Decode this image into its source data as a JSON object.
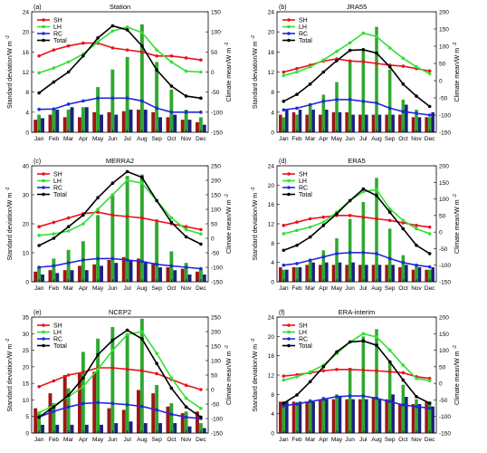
{
  "months": [
    "Jan",
    "Feb",
    "Mar",
    "Apr",
    "May",
    "Jun",
    "Jul",
    "Aug",
    "Sep",
    "Oct",
    "Nov",
    "Dec"
  ],
  "left_axis_label": "Standard deviation/W m",
  "right_axis_label": "Climate mean/W m",
  "colors": {
    "SH": "#e8141b",
    "LH": "#33e033",
    "RC": "#1f2bd6",
    "Total": "#000000",
    "bar_SH": "#a01515",
    "bar_LH": "#2fa82f",
    "bar_RC": "#1a237e"
  },
  "chart_data": [
    {
      "panel": "(a)",
      "title": "Station",
      "type": "bar+line",
      "left_axis": {
        "label": "Standard deviation/W m-2",
        "range": [
          0,
          24
        ],
        "ticks": [
          0,
          4,
          8,
          12,
          16,
          20,
          24
        ]
      },
      "right_axis": {
        "label": "Climate mean/W m-2",
        "range": [
          -150,
          150
        ],
        "ticks": [
          -150,
          -100,
          -50,
          0,
          50,
          100,
          150
        ]
      },
      "legend": [
        "SH",
        "LH",
        "RC",
        "Total"
      ],
      "bars": {
        "SH": [
          2.5,
          3.5,
          3.0,
          3.0,
          4.0,
          4.0,
          4.2,
          4.5,
          4.0,
          3.0,
          2.5,
          2.0
        ],
        "LH": [
          3.5,
          4.5,
          4.5,
          5.0,
          9.0,
          12.5,
          15.0,
          21.5,
          14.0,
          8.5,
          4.5,
          3.0
        ],
        "RC": [
          2.8,
          4.5,
          5.0,
          5.0,
          3.5,
          3.5,
          4.5,
          4.5,
          3.0,
          3.5,
          2.5,
          1.5
        ]
      },
      "lines": {
        "SH": [
          40,
          55,
          65,
          72,
          72,
          60,
          55,
          50,
          40,
          40,
          35,
          30
        ],
        "LH": [
          -2,
          10,
          25,
          45,
          75,
          102,
          112,
          98,
          55,
          25,
          2,
          0
        ],
        "RC": [
          -93,
          -92,
          -80,
          -72,
          -65,
          -65,
          -65,
          -72,
          -90,
          -100,
          -100,
          -100
        ],
        "Total": [
          -52,
          -25,
          0,
          40,
          85,
          115,
          105,
          65,
          5,
          -35,
          -60,
          -65
        ]
      }
    },
    {
      "panel": "(b)",
      "title": "JRA55",
      "type": "bar+line",
      "left_axis": {
        "label": "Standard deviation/W m-2",
        "range": [
          0,
          24
        ],
        "ticks": [
          0,
          4,
          8,
          12,
          16,
          20,
          24
        ]
      },
      "right_axis": {
        "label": "Climate mean/W m-2",
        "range": [
          -150,
          200
        ],
        "ticks": [
          -150,
          -100,
          -50,
          0,
          50,
          100,
          150,
          200
        ]
      },
      "legend": [
        "SH",
        "LH",
        "RC",
        "Total"
      ],
      "bars": {
        "SH": [
          3.5,
          4.0,
          3.5,
          3.5,
          4.0,
          4.0,
          3.5,
          3.5,
          3.5,
          3.5,
          3.0,
          3.0
        ],
        "LH": [
          3.0,
          3.5,
          5.5,
          7.5,
          10.0,
          14.0,
          16.5,
          21.0,
          12.5,
          6.5,
          4.5,
          3.0
        ],
        "RC": [
          4.5,
          4.5,
          4.5,
          4.5,
          4.0,
          3.5,
          3.5,
          3.5,
          3.5,
          5.5,
          3.0,
          4.0
        ]
      },
      "lines": {
        "SH": [
          25,
          35,
          45,
          57,
          63,
          57,
          55,
          50,
          45,
          42,
          35,
          28
        ],
        "LH": [
          15,
          25,
          40,
          60,
          85,
          110,
          138,
          128,
          95,
          65,
          40,
          20
        ],
        "RC": [
          -85,
          -80,
          -70,
          -60,
          -55,
          -55,
          -60,
          -65,
          -80,
          -90,
          -95,
          -100
        ],
        "Total": [
          -60,
          -40,
          -10,
          25,
          58,
          88,
          90,
          80,
          40,
          -10,
          -45,
          -75
        ]
      }
    },
    {
      "panel": "(c)",
      "title": "MERRA2",
      "type": "bar+line",
      "left_axis": {
        "label": "Standard deviation/W m-2",
        "range": [
          0,
          40
        ],
        "ticks": [
          0,
          10,
          20,
          30,
          40
        ]
      },
      "right_axis": {
        "label": "Climate mean/W m-2",
        "range": [
          -150,
          250
        ],
        "ticks": [
          -150,
          -100,
          -50,
          0,
          50,
          100,
          150,
          200,
          250
        ]
      },
      "legend": [
        "SH",
        "LH",
        "RC",
        "Total"
      ],
      "bars": {
        "SH": [
          3.5,
          4.0,
          4.0,
          5.5,
          6.0,
          7.5,
          8.5,
          8.0,
          6.5,
          5.0,
          4.5,
          3.5
        ],
        "LH": [
          5.0,
          8.0,
          11.0,
          14.0,
          23.0,
          30.0,
          36.5,
          37.0,
          20.5,
          10.5,
          6.5,
          4.5
        ],
        "RC": [
          2.5,
          3.0,
          4.0,
          4.0,
          5.5,
          6.5,
          7.5,
          7.0,
          5.0,
          4.0,
          2.5,
          2.5
        ]
      },
      "lines": {
        "SH": [
          40,
          55,
          70,
          85,
          90,
          80,
          75,
          70,
          60,
          50,
          40,
          30
        ],
        "LH": [
          10,
          15,
          25,
          50,
          100,
          150,
          200,
          190,
          130,
          70,
          30,
          15
        ],
        "RC": [
          -100,
          -95,
          -85,
          -75,
          -70,
          -70,
          -75,
          -80,
          -90,
          -95,
          -100,
          -105
        ],
        "Total": [
          -25,
          0,
          40,
          80,
          140,
          190,
          230,
          210,
          130,
          55,
          5,
          -20
        ]
      }
    },
    {
      "panel": "(d)",
      "title": "ERA5",
      "type": "bar+line",
      "left_axis": {
        "label": "Standard deviation/W m-2",
        "range": [
          0,
          24
        ],
        "ticks": [
          0,
          4,
          8,
          12,
          16,
          20,
          24
        ]
      },
      "right_axis": {
        "label": "Climate mean/W m-2",
        "range": [
          -150,
          200
        ],
        "ticks": [
          -150,
          -100,
          -50,
          0,
          50,
          100,
          150,
          200
        ]
      },
      "legend": [
        "SH",
        "LH",
        "RC",
        "Total"
      ],
      "bars": {
        "SH": [
          3.0,
          3.0,
          3.5,
          3.5,
          3.5,
          3.5,
          3.5,
          3.5,
          3.5,
          3.0,
          2.5,
          2.5
        ],
        "LH": [
          2.5,
          3.0,
          4.5,
          6.5,
          9.0,
          13.0,
          16.5,
          21.5,
          11.0,
          5.5,
          3.5,
          2.5
        ],
        "RC": [
          2.5,
          3.0,
          4.0,
          4.0,
          4.0,
          4.0,
          3.5,
          3.5,
          3.5,
          3.5,
          3.0,
          3.0
        ]
      },
      "lines": {
        "SH": [
          20,
          30,
          40,
          45,
          50,
          50,
          45,
          40,
          35,
          28,
          20,
          15
        ],
        "LH": [
          -5,
          5,
          15,
          30,
          60,
          95,
          122,
          128,
          70,
          35,
          10,
          -5
        ],
        "RC": [
          -100,
          -95,
          -85,
          -75,
          -65,
          -62,
          -62,
          -65,
          -80,
          -92,
          -100,
          -105
        ],
        "Total": [
          -55,
          -40,
          -15,
          20,
          55,
          95,
          130,
          110,
          60,
          10,
          -40,
          -65
        ]
      }
    },
    {
      "panel": "(e)",
      "title": "NCEP2",
      "type": "bar+line",
      "left_axis": {
        "label": "Standard deviation/W m-2",
        "range": [
          0,
          35
        ],
        "ticks": [
          0,
          5,
          10,
          15,
          20,
          25,
          30,
          35
        ]
      },
      "right_axis": {
        "label": "Climate mean/W m-2",
        "range": [
          -150,
          250
        ],
        "ticks": [
          -150,
          -100,
          -50,
          0,
          50,
          100,
          150,
          200,
          250
        ]
      },
      "legend": [
        "SH",
        "LH",
        "RC",
        "Total"
      ],
      "bars": {
        "SH": [
          7.5,
          12.0,
          17.5,
          18.0,
          18.5,
          7.5,
          7.0,
          13.0,
          12.0,
          8.0,
          6.0,
          6.5
        ],
        "LH": [
          6.0,
          9.0,
          13.5,
          24.5,
          28.5,
          32.0,
          30.0,
          34.5,
          14.5,
          9.0,
          6.5,
          3.0
        ],
        "RC": [
          2.5,
          2.5,
          2.5,
          2.5,
          2.5,
          3.0,
          3.5,
          3.0,
          3.0,
          3.0,
          2.0,
          1.5
        ]
      },
      "lines": {
        "SH": [
          10,
          30,
          50,
          60,
          75,
          75,
          70,
          65,
          55,
          35,
          15,
          0
        ],
        "LH": [
          -80,
          -55,
          -25,
          10,
          70,
          135,
          190,
          200,
          125,
          40,
          -30,
          -65
        ],
        "RC": [
          -95,
          -75,
          -60,
          -48,
          -45,
          -48,
          -52,
          -58,
          -70,
          -85,
          -95,
          -100
        ],
        "Total": [
          -95,
          -60,
          -20,
          40,
          120,
          170,
          205,
          175,
          90,
          5,
          -60,
          -95
        ]
      }
    },
    {
      "panel": "(f)",
      "title": "ERA-interim",
      "type": "bar+line",
      "left_axis": {
        "label": "Standard deviation/W m-2",
        "range": [
          0,
          24
        ],
        "ticks": [
          0,
          4,
          8,
          12,
          16,
          20,
          24
        ]
      },
      "right_axis": {
        "label": "Climate mean/W m-2",
        "range": [
          -150,
          200
        ],
        "ticks": [
          -150,
          -100,
          -50,
          0,
          50,
          100,
          150,
          200
        ]
      },
      "legend": [
        "SH",
        "LH",
        "RC",
        "Total"
      ],
      "bars": {
        "SH": [
          6.5,
          6.5,
          6.5,
          7.0,
          7.0,
          7.0,
          7.0,
          7.5,
          7.0,
          6.0,
          6.0,
          6.5
        ],
        "LH": [
          6.5,
          6.0,
          7.0,
          7.5,
          8.0,
          13.5,
          20.0,
          21.5,
          15.0,
          10.0,
          7.0,
          6.5
        ],
        "RC": [
          6.5,
          6.5,
          6.5,
          7.0,
          7.5,
          7.0,
          7.0,
          7.0,
          8.0,
          7.5,
          6.0,
          5.5
        ]
      },
      "lines": {
        "SH": [
          22,
          26,
          32,
          38,
          42,
          42,
          40,
          38,
          35,
          32,
          20,
          15
        ],
        "LH": [
          10,
          20,
          35,
          55,
          90,
          125,
          150,
          140,
          100,
          55,
          15,
          8
        ],
        "RC": [
          -68,
          -62,
          -55,
          -48,
          -40,
          -38,
          -38,
          -45,
          -55,
          -65,
          -70,
          -75
        ],
        "Total": [
          -60,
          -35,
          5,
          50,
          95,
          125,
          128,
          115,
          65,
          10,
          -40,
          -60
        ]
      }
    }
  ]
}
